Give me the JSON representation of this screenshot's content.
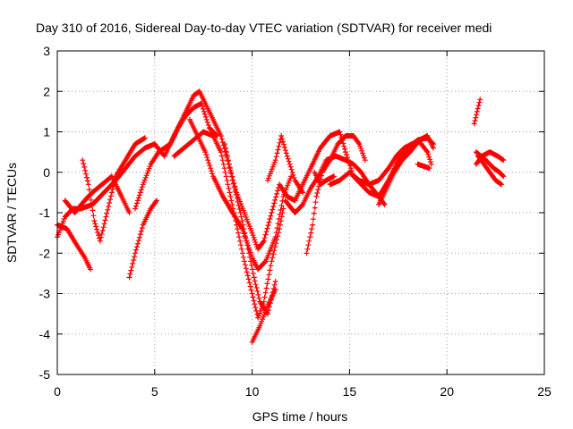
{
  "chart_data": {
    "type": "scatter",
    "title": "Day 310 of 2016, Sidereal Day-to-day VTEC variation (SDTVAR) for receiver medi",
    "xlabel": "GPS time / hours",
    "ylabel": "SDTVAR / TECUs",
    "xlim": [
      0,
      25
    ],
    "ylim": [
      -5,
      3
    ],
    "xticks": [
      "0",
      "5",
      "10",
      "15",
      "20",
      "25"
    ],
    "yticks": [
      "3",
      "2",
      "1",
      "0",
      "-1",
      "-2",
      "-3",
      "-4",
      "-5"
    ],
    "grid": true,
    "marker": "plus",
    "color": "#ff0000",
    "tracks": [
      [
        [
          0.0,
          -1.6
        ],
        [
          0.4,
          -1.1
        ],
        [
          0.8,
          -0.9
        ],
        [
          1.2,
          -0.9
        ],
        [
          1.8,
          -0.8
        ],
        [
          2.4,
          -0.5
        ],
        [
          3.0,
          -0.2
        ],
        [
          3.5,
          0.1
        ],
        [
          4.0,
          0.4
        ],
        [
          4.5,
          0.6
        ],
        [
          5.0,
          0.7
        ],
        [
          5.5,
          0.4
        ],
        [
          6.0,
          0.9
        ],
        [
          6.5,
          1.4
        ],
        [
          7.0,
          1.9
        ],
        [
          7.3,
          2.0
        ],
        [
          7.6,
          1.7
        ],
        [
          8.0,
          1.3
        ],
        [
          8.4,
          0.9
        ],
        [
          8.8,
          0.2
        ],
        [
          9.2,
          -0.5
        ],
        [
          9.6,
          -1.0
        ],
        [
          10.0,
          -1.5
        ],
        [
          10.3,
          -1.9
        ],
        [
          10.6,
          -1.7
        ],
        [
          11.0,
          -1.0
        ],
        [
          11.4,
          -0.3
        ],
        [
          11.8,
          -0.6
        ],
        [
          12.2,
          -0.7
        ],
        [
          12.6,
          -0.3
        ],
        [
          13.0,
          0.1
        ],
        [
          13.5,
          0.6
        ],
        [
          14.0,
          0.9
        ],
        [
          14.5,
          1.0
        ],
        [
          14.8,
          0.5
        ],
        [
          15.2,
          -0.1
        ],
        [
          15.6,
          -0.3
        ],
        [
          16.0,
          -0.5
        ],
        [
          16.5,
          -0.6
        ],
        [
          17.0,
          -0.2
        ],
        [
          17.5,
          0.3
        ],
        [
          18.0,
          0.6
        ],
        [
          18.5,
          0.8
        ],
        [
          19.0,
          0.85
        ],
        [
          19.3,
          0.7
        ]
      ],
      [
        [
          0.0,
          -1.3
        ],
        [
          0.5,
          -1.4
        ],
        [
          1.0,
          -1.8
        ],
        [
          1.4,
          -2.1
        ],
        [
          1.7,
          -2.4
        ]
      ],
      [
        [
          1.3,
          0.3
        ],
        [
          1.6,
          -0.3
        ],
        [
          1.9,
          -1.2
        ],
        [
          2.2,
          -1.7
        ],
        [
          2.5,
          -1.1
        ],
        [
          2.8,
          -0.5
        ],
        [
          3.0,
          -0.1
        ],
        [
          3.5,
          0.3
        ],
        [
          4.0,
          0.7
        ],
        [
          4.5,
          0.85
        ]
      ],
      [
        [
          0.4,
          -0.7
        ],
        [
          0.9,
          -1.0
        ],
        [
          1.4,
          -0.7
        ],
        [
          1.8,
          -0.5
        ],
        [
          2.3,
          -0.3
        ],
        [
          2.8,
          -0.1
        ],
        [
          3.3,
          -0.6
        ],
        [
          3.7,
          -1.0
        ]
      ],
      [
        [
          3.7,
          -2.6
        ],
        [
          4.0,
          -2.0
        ],
        [
          4.4,
          -1.3
        ],
        [
          4.8,
          -0.9
        ],
        [
          5.1,
          -0.7
        ]
      ],
      [
        [
          4.0,
          -0.9
        ],
        [
          4.4,
          -0.3
        ],
        [
          4.8,
          0.2
        ],
        [
          5.2,
          0.5
        ],
        [
          5.8,
          0.7
        ],
        [
          6.2,
          1.1
        ],
        [
          6.6,
          1.4
        ],
        [
          7.0,
          1.6
        ],
        [
          7.4,
          1.7
        ],
        [
          7.8,
          1.1
        ],
        [
          8.2,
          0.9
        ]
      ],
      [
        [
          6.0,
          0.4
        ],
        [
          6.5,
          0.6
        ],
        [
          7.0,
          0.8
        ],
        [
          7.5,
          1.0
        ],
        [
          8.0,
          0.9
        ],
        [
          8.4,
          0.5
        ],
        [
          8.8,
          -0.4
        ],
        [
          9.2,
          -1.3
        ],
        [
          9.6,
          -2.2
        ],
        [
          10.0,
          -3.0
        ],
        [
          10.3,
          -3.6
        ],
        [
          10.6,
          -3.2
        ],
        [
          11.0,
          -2.2
        ],
        [
          11.4,
          -1.4
        ],
        [
          11.6,
          -0.9
        ]
      ],
      [
        [
          6.8,
          1.3
        ],
        [
          7.2,
          0.9
        ],
        [
          7.6,
          0.5
        ],
        [
          8.0,
          -0.1
        ],
        [
          8.5,
          -0.6
        ],
        [
          9.0,
          -1.0
        ],
        [
          9.5,
          -1.4
        ],
        [
          10.0,
          -2.1
        ],
        [
          10.3,
          -2.4
        ],
        [
          10.7,
          -2.2
        ],
        [
          11.2,
          -1.6
        ],
        [
          11.6,
          -0.6
        ],
        [
          12.0,
          -0.1
        ]
      ],
      [
        [
          8.6,
          0.7
        ],
        [
          9.0,
          -0.2
        ],
        [
          9.4,
          -1.0
        ],
        [
          9.8,
          -1.9
        ],
        [
          10.1,
          -2.6
        ],
        [
          10.4,
          -3.2
        ],
        [
          10.8,
          -3.5
        ],
        [
          11.2,
          -2.7
        ]
      ],
      [
        [
          10.0,
          -4.2
        ],
        [
          10.4,
          -3.8
        ],
        [
          10.8,
          -3.3
        ],
        [
          11.2,
          -2.9
        ]
      ],
      [
        [
          10.8,
          -0.2
        ],
        [
          11.2,
          0.3
        ],
        [
          11.5,
          0.9
        ],
        [
          11.8,
          0.4
        ],
        [
          12.2,
          -0.2
        ],
        [
          12.6,
          -0.5
        ]
      ],
      [
        [
          11.7,
          -0.7
        ],
        [
          12.2,
          -1.0
        ],
        [
          12.6,
          -0.8
        ],
        [
          13.0,
          -0.4
        ],
        [
          13.4,
          -0.1
        ],
        [
          13.8,
          0.3
        ],
        [
          14.3,
          0.4
        ],
        [
          14.8,
          0.3
        ],
        [
          15.2,
          0.2
        ],
        [
          15.6,
          0.0
        ],
        [
          16.0,
          -0.3
        ],
        [
          16.5,
          -0.6
        ],
        [
          16.8,
          -0.8
        ]
      ],
      [
        [
          12.8,
          -2.0
        ],
        [
          13.1,
          -1.3
        ],
        [
          13.3,
          -0.6
        ],
        [
          13.6,
          0.0
        ],
        [
          14.0,
          0.3
        ],
        [
          14.4,
          0.7
        ],
        [
          14.8,
          0.9
        ],
        [
          15.2,
          0.9
        ],
        [
          15.5,
          0.7
        ],
        [
          15.8,
          0.3
        ]
      ],
      [
        [
          14.0,
          -0.3
        ],
        [
          14.5,
          -0.2
        ],
        [
          15.0,
          0.0
        ],
        [
          15.5,
          -0.2
        ],
        [
          16.0,
          -0.3
        ],
        [
          16.5,
          -0.2
        ],
        [
          17.0,
          0.1
        ],
        [
          17.4,
          0.4
        ],
        [
          17.8,
          0.6
        ],
        [
          18.2,
          0.7
        ],
        [
          18.6,
          0.75
        ],
        [
          19.0,
          0.5
        ],
        [
          19.2,
          0.2
        ]
      ],
      [
        [
          13.2,
          0.0
        ],
        [
          13.5,
          -0.3
        ],
        [
          13.8,
          -0.2
        ],
        [
          14.2,
          -0.1
        ]
      ],
      [
        [
          16.5,
          -0.8
        ],
        [
          16.9,
          -0.4
        ],
        [
          17.3,
          0.0
        ],
        [
          17.7,
          0.3
        ],
        [
          18.1,
          0.5
        ],
        [
          18.6,
          0.8
        ],
        [
          19.0,
          0.9
        ],
        [
          19.3,
          0.6
        ]
      ],
      [
        [
          18.5,
          0.2
        ],
        [
          18.8,
          0.15
        ],
        [
          19.1,
          0.1
        ]
      ],
      [
        [
          21.4,
          1.2
        ],
        [
          21.55,
          1.5
        ],
        [
          21.7,
          1.8
        ]
      ],
      [
        [
          21.5,
          0.2
        ],
        [
          21.8,
          0.4
        ],
        [
          22.2,
          0.5
        ],
        [
          22.6,
          0.4
        ],
        [
          22.9,
          0.3
        ]
      ],
      [
        [
          21.6,
          0.4
        ],
        [
          21.9,
          0.2
        ],
        [
          22.2,
          0.0
        ],
        [
          22.5,
          -0.2
        ],
        [
          22.8,
          -0.3
        ]
      ],
      [
        [
          21.5,
          0.5
        ],
        [
          22.0,
          0.3
        ],
        [
          22.4,
          0.1
        ],
        [
          22.7,
          0.0
        ],
        [
          22.9,
          -0.1
        ]
      ]
    ]
  }
}
